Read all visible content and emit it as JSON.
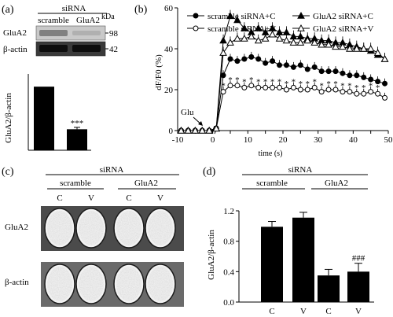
{
  "panels": {
    "a": {
      "label": "(a)",
      "header": "siRNA",
      "lanes": [
        "scramble",
        "GluA2"
      ],
      "kda": "kDa",
      "rows": [
        {
          "name": "GluA2",
          "kda": "98"
        },
        {
          "name": "β-actin",
          "kda": "42"
        }
      ],
      "ylabel": "GluA2/β-actin",
      "sig": "***"
    },
    "b": {
      "label": "(b)",
      "ylabel": "dF/F0 (%)",
      "xlabel": "time (s)",
      "glu_label": "Glu",
      "star": "*"
    },
    "c": {
      "label": "(c)",
      "header": "siRNA",
      "groups": [
        "scramble",
        "GluA2"
      ],
      "lanes": [
        "C",
        "V",
        "C",
        "V"
      ],
      "rows": [
        "GluA2",
        "β-actin"
      ]
    },
    "d": {
      "label": "(d)",
      "header": "siRNA",
      "groups": [
        "scramble",
        "GluA2"
      ],
      "sig": "###"
    }
  },
  "chart_data": [
    {
      "type": "bar",
      "panel": "a",
      "categories": [
        "scramble",
        "GluA2"
      ],
      "values": [
        1.0,
        0.33
      ],
      "errors": [
        0.0,
        0.03
      ],
      "ylabel": "GluA2/β-actin",
      "ylim": [
        0,
        1.2
      ],
      "annotations": [
        {
          "category": "GluA2",
          "text": "***"
        }
      ]
    },
    {
      "type": "line",
      "panel": "b",
      "xlabel": "time (s)",
      "ylabel": "dF/F0 (%)",
      "xlim": [
        -10,
        50
      ],
      "ylim": [
        0,
        60
      ],
      "xticks": [
        -10,
        -5,
        0,
        5,
        10,
        15,
        20,
        25,
        30,
        35,
        40,
        45,
        50
      ],
      "yticks": [
        0,
        20,
        40,
        60
      ],
      "legend": "top",
      "series": [
        {
          "name": "scramble siRNA+C",
          "marker": "filled-circle",
          "x": [
            -9,
            -7,
            -5,
            -3,
            -1,
            1,
            3,
            5,
            7,
            9,
            11,
            13,
            15,
            17,
            19,
            21,
            23,
            25,
            27,
            29,
            31,
            33,
            35,
            37,
            39,
            41,
            43,
            45,
            47,
            49
          ],
          "y": [
            0,
            0,
            0,
            0,
            0,
            1,
            27,
            35,
            34,
            35,
            36,
            35,
            33,
            34,
            32,
            32,
            31,
            32,
            30,
            31,
            29,
            29,
            29,
            28,
            27,
            27,
            26,
            25,
            24,
            23
          ]
        },
        {
          "name": "GluA2 siRNA+C",
          "marker": "filled-triangle",
          "x": [
            -9,
            -7,
            -5,
            -3,
            -1,
            1,
            3,
            5,
            7,
            9,
            11,
            13,
            15,
            17,
            19,
            21,
            23,
            25,
            27,
            29,
            31,
            33,
            35,
            37,
            39,
            41,
            43,
            45,
            47,
            49
          ],
          "y": [
            0,
            0,
            0,
            0,
            0,
            1,
            44,
            56,
            54,
            50,
            48,
            50,
            48,
            50,
            48,
            48,
            46,
            46,
            45,
            45,
            44,
            44,
            43,
            43,
            42,
            41,
            40,
            39,
            37,
            35
          ]
        },
        {
          "name": "scramble siRNA+V",
          "marker": "open-circle",
          "x": [
            -9,
            -7,
            -5,
            -3,
            -1,
            1,
            3,
            5,
            7,
            9,
            11,
            13,
            15,
            17,
            19,
            21,
            23,
            25,
            27,
            29,
            31,
            33,
            35,
            37,
            39,
            41,
            43,
            45,
            47,
            49
          ],
          "y": [
            0,
            0,
            0,
            0,
            0,
            1,
            19,
            22,
            22,
            21,
            22,
            21,
            21,
            21,
            21,
            20,
            21,
            20,
            20,
            21,
            19,
            20,
            20,
            19,
            19,
            18,
            18,
            19,
            18,
            16
          ]
        },
        {
          "name": "GluA2 siRNA+V",
          "marker": "open-triangle",
          "x": [
            -9,
            -7,
            -5,
            -3,
            -1,
            1,
            3,
            5,
            7,
            9,
            11,
            13,
            15,
            17,
            19,
            21,
            23,
            25,
            27,
            29,
            31,
            33,
            35,
            37,
            39,
            41,
            43,
            45,
            47,
            49
          ],
          "y": [
            0,
            0,
            0,
            0,
            0,
            1,
            38,
            43,
            45,
            45,
            46,
            44,
            45,
            47,
            45,
            44,
            43,
            43,
            44,
            43,
            42,
            42,
            41,
            41,
            40,
            40,
            40,
            40,
            38,
            35
          ]
        }
      ],
      "annotations": [
        {
          "text": "Glu",
          "x": 0
        },
        {
          "text": "*",
          "series": "scramble siRNA+V",
          "from_x": 3,
          "to_x": 47
        }
      ]
    },
    {
      "type": "bar",
      "panel": "d",
      "categories": [
        "C",
        "V",
        "C",
        "V"
      ],
      "groups": [
        "scramble",
        "GluA2"
      ],
      "values": [
        0.99,
        1.11,
        0.35,
        0.4
      ],
      "errors": [
        0.07,
        0.07,
        0.08,
        0.11
      ],
      "ylabel": "GluA2/β-actin",
      "ylim": [
        0,
        1.2
      ],
      "yticks": [
        0.0,
        0.4,
        0.8,
        1.2
      ],
      "annotations": [
        {
          "category_index": 3,
          "text": "###"
        }
      ]
    }
  ]
}
